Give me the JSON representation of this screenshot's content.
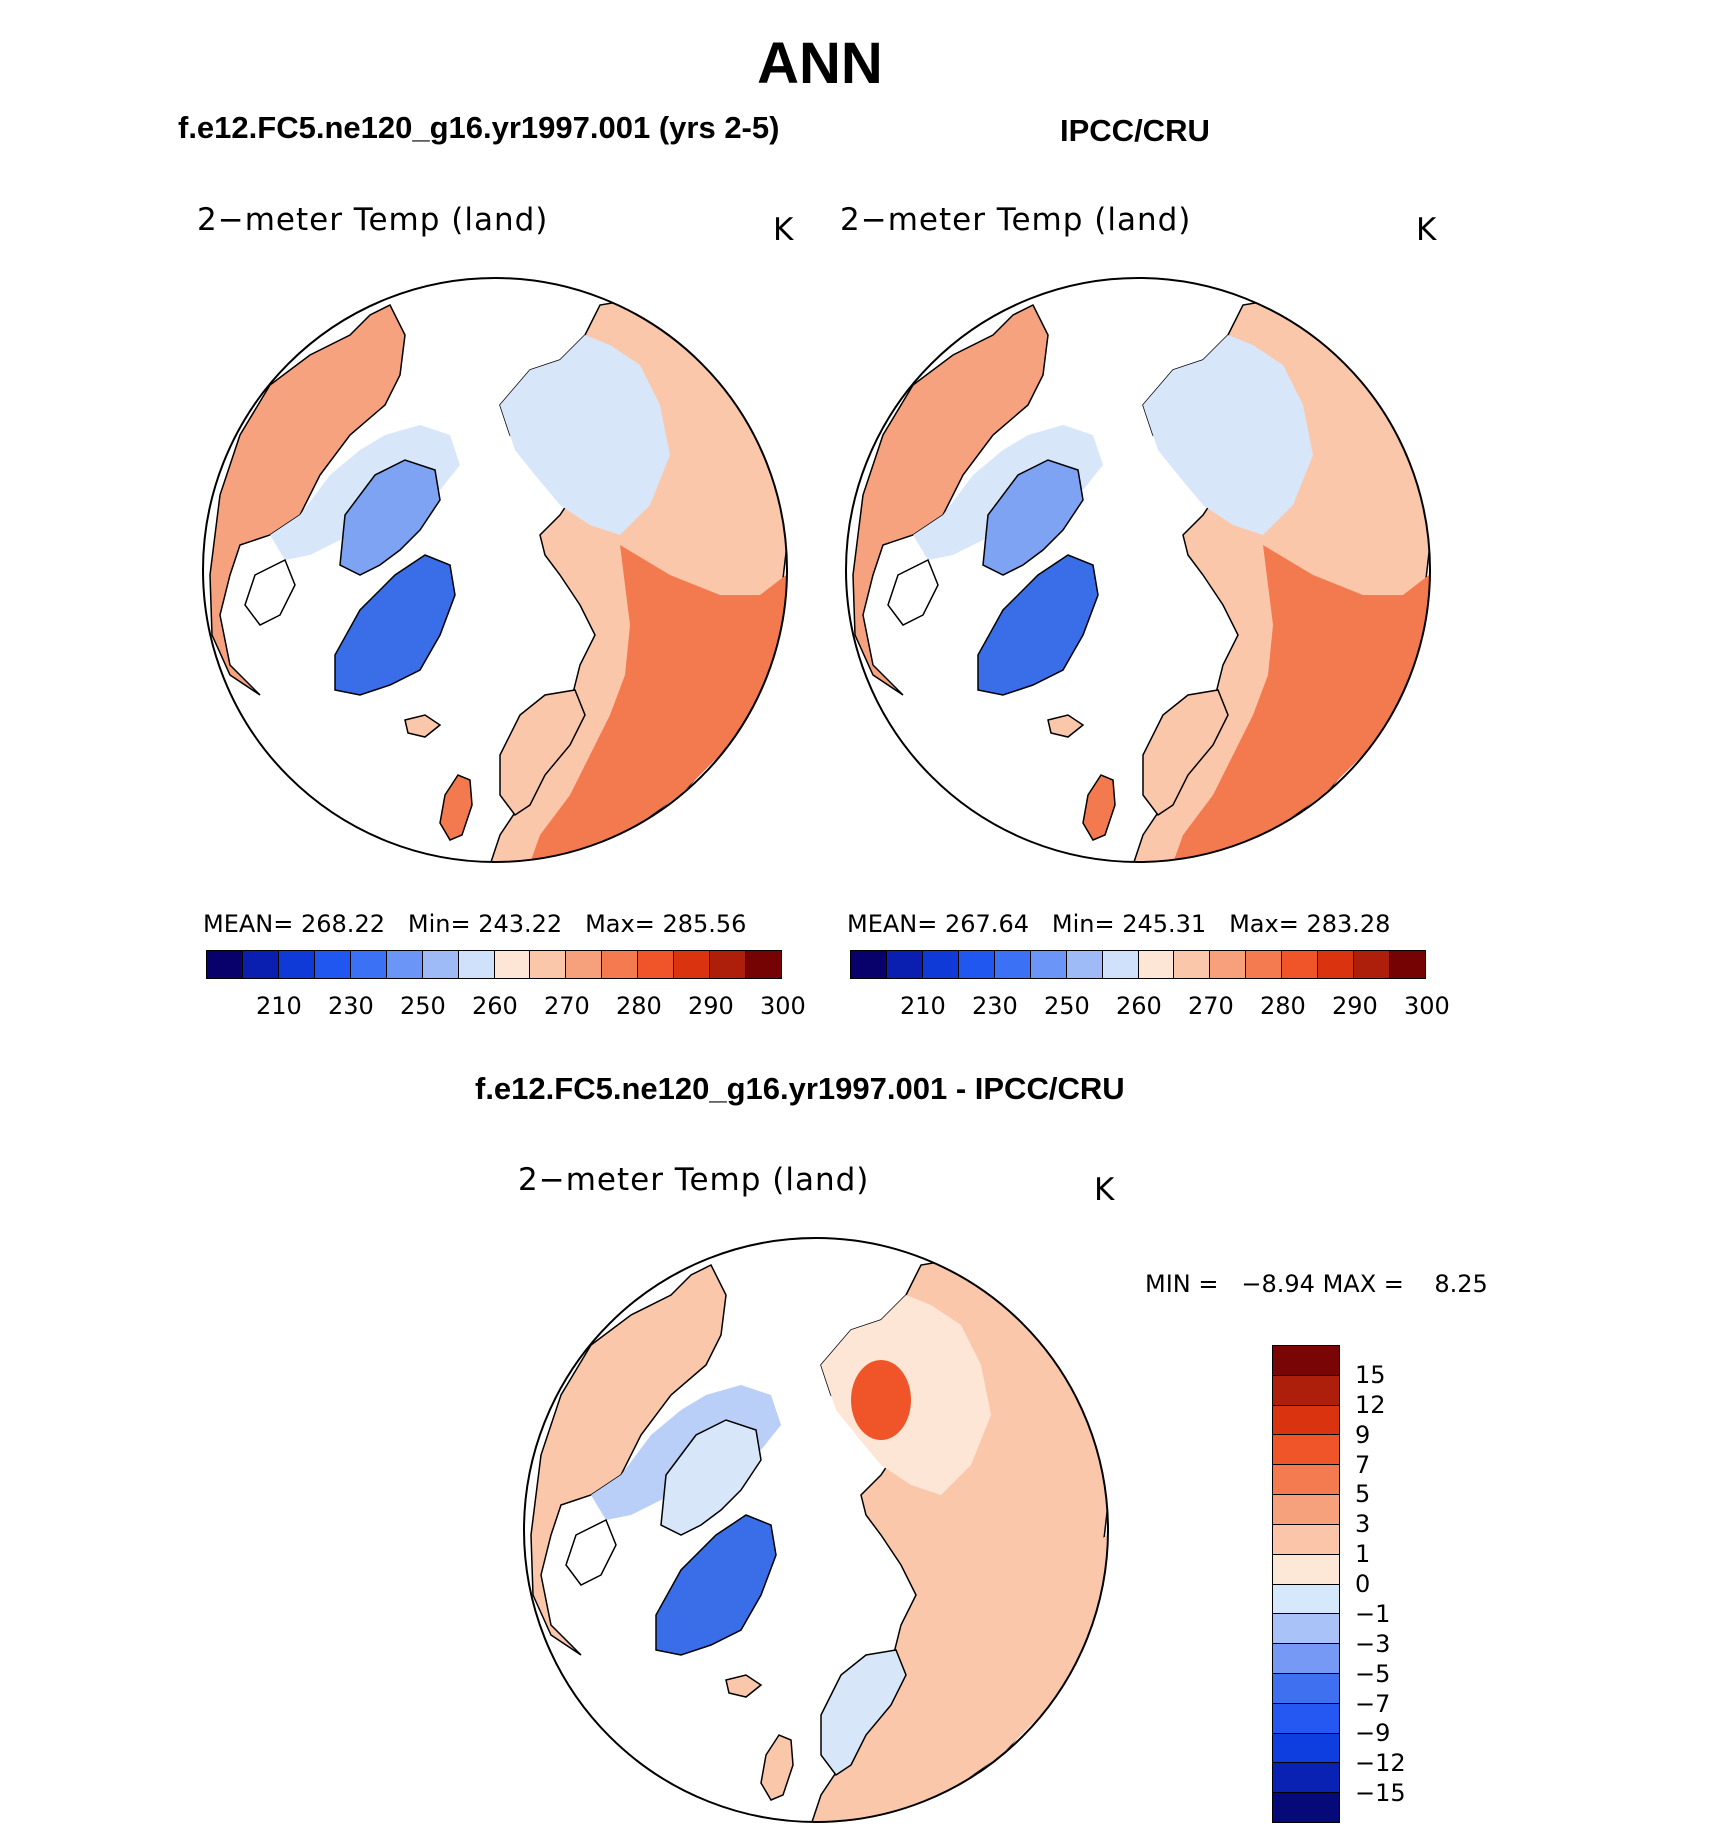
{
  "title": "ANN",
  "top_left": {
    "case_title": "f.e12.FC5.ne120_g16.yr1997.001 (yrs 2-5)",
    "variable": "2−meter Temp (land)",
    "units": "K",
    "stats": {
      "mean_label": "MEAN=",
      "mean": "268.22",
      "min_label": "Min=",
      "min": "243.22",
      "max_label": "Max=",
      "max": "285.56"
    }
  },
  "top_right": {
    "case_title": "IPCC/CRU",
    "variable": "2−meter Temp (land)",
    "units": "K",
    "stats": {
      "mean_label": "MEAN=",
      "mean": "267.64",
      "min_label": "Min=",
      "min": "245.31",
      "max_label": "Max=",
      "max": "283.28"
    }
  },
  "bottom": {
    "case_title": "f.e12.FC5.ne120_g16.yr1997.001 - IPCC/CRU",
    "variable": "2−meter Temp (land)",
    "units": "K",
    "stats": {
      "min_label": "MIN =",
      "min": "−8.94",
      "max_label": "MAX =",
      "max": "8.25"
    }
  },
  "abs_colorbar": {
    "colors": [
      "#08006b",
      "#0a1faf",
      "#0f3ad8",
      "#1f57f0",
      "#3b72f5",
      "#6b95f7",
      "#9ebbf8",
      "#d0e2fb",
      "#fde6d5",
      "#fbc7ab",
      "#f6a07c",
      "#f47a50",
      "#f0552a",
      "#d9330f",
      "#ad1f0a",
      "#760303"
    ],
    "ticks": [
      "210",
      "230",
      "250",
      "260",
      "270",
      "280",
      "290",
      "300"
    ]
  },
  "diff_colorbar": {
    "colors": [
      "#060a78",
      "#0922b4",
      "#0e3ee0",
      "#2558f2",
      "#3e70f0",
      "#7599f5",
      "#a9c3f8",
      "#d6e8fc",
      "#fde8d8",
      "#fac5a8",
      "#f6a07c",
      "#f47a50",
      "#f0552a",
      "#d9330f",
      "#ad1f0a",
      "#7a0505"
    ],
    "ticks": [
      "15",
      "12",
      "9",
      "7",
      "5",
      "3",
      "1",
      "0",
      "−1",
      "−3",
      "−5",
      "−7",
      "−9",
      "−12",
      "−15"
    ]
  },
  "palette": {
    "ocean": "#ffffff",
    "warm_dark": "#f37a4e",
    "warm_mid": "#f7a27f",
    "warm_light": "#fbc7ab",
    "warm_pale": "#fde6d5",
    "cool_pale": "#d8e6fa",
    "cool_light": "#b9cff7",
    "cool_mid": "#7ea3f3",
    "cool_dark": "#3a6ee8",
    "diff_hot": "#f0552a"
  }
}
